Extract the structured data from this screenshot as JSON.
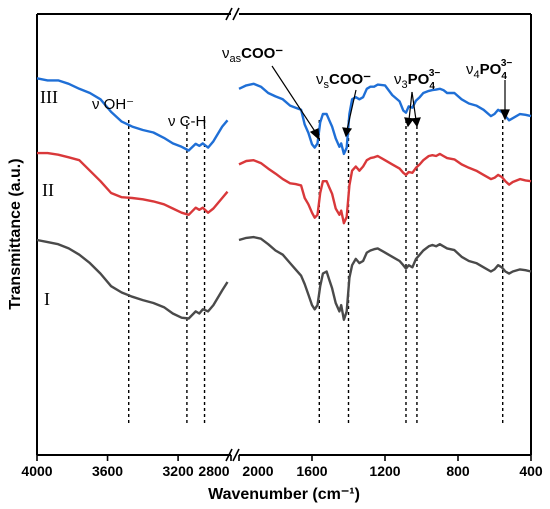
{
  "chart_data": {
    "type": "line",
    "title": "",
    "xlabel": "Wavenumber (cm⁻¹)",
    "ylabel": "Transmittance (a.u.)",
    "x_axis": {
      "reversed": true,
      "broken": true,
      "segments": [
        {
          "range": [
            4000,
            2900
          ],
          "ticks": [
            4000,
            3600,
            3200,
            2800
          ]
        },
        {
          "range": [
            2000,
            400
          ],
          "ticks": [
            2000,
            1600,
            1200,
            800,
            400
          ]
        }
      ],
      "tick_labels": [
        "4000",
        "3600",
        "3200",
        "2800",
        "2000",
        "1600",
        "1200",
        "800",
        "400"
      ],
      "break_marks": "//"
    },
    "y_ticks_shown": false,
    "grid": false,
    "legend": "none",
    "series": [
      {
        "name": "III",
        "color": "#1f6fd6",
        "points": [
          [
            4000,
            0.885
          ],
          [
            3940,
            0.88
          ],
          [
            3880,
            0.88
          ],
          [
            3820,
            0.872
          ],
          [
            3760,
            0.86
          ],
          [
            3700,
            0.85
          ],
          [
            3640,
            0.835
          ],
          [
            3580,
            0.805
          ],
          [
            3520,
            0.782
          ],
          [
            3460,
            0.77
          ],
          [
            3400,
            0.762
          ],
          [
            3340,
            0.756
          ],
          [
            3280,
            0.743
          ],
          [
            3230,
            0.73
          ],
          [
            3180,
            0.722
          ],
          [
            3140,
            0.713
          ],
          [
            3100,
            0.729
          ],
          [
            3080,
            0.724
          ],
          [
            3060,
            0.73
          ],
          [
            3030,
            0.72
          ],
          [
            3000,
            0.735
          ],
          [
            2950,
            0.77
          ],
          [
            2920,
            0.785
          ],
          [
            2000,
            0.86
          ],
          [
            1960,
            0.868
          ],
          [
            1920,
            0.872
          ],
          [
            1880,
            0.865
          ],
          [
            1840,
            0.85
          ],
          [
            1800,
            0.842
          ],
          [
            1760,
            0.835
          ],
          [
            1720,
            0.82
          ],
          [
            1690,
            0.815
          ],
          [
            1660,
            0.81
          ],
          [
            1640,
            0.775
          ],
          [
            1620,
            0.755
          ],
          [
            1600,
            0.728
          ],
          [
            1585,
            0.72
          ],
          [
            1570,
            0.73
          ],
          [
            1555,
            0.78
          ],
          [
            1540,
            0.8
          ],
          [
            1520,
            0.8
          ],
          [
            1505,
            0.785
          ],
          [
            1490,
            0.77
          ],
          [
            1470,
            0.742
          ],
          [
            1450,
            0.722
          ],
          [
            1440,
            0.73
          ],
          [
            1425,
            0.705
          ],
          [
            1410,
            0.72
          ],
          [
            1395,
            0.8
          ],
          [
            1380,
            0.835
          ],
          [
            1360,
            0.84
          ],
          [
            1340,
            0.835
          ],
          [
            1320,
            0.84
          ],
          [
            1300,
            0.86
          ],
          [
            1280,
            0.865
          ],
          [
            1260,
            0.865
          ],
          [
            1240,
            0.87
          ],
          [
            1200,
            0.868
          ],
          [
            1160,
            0.845
          ],
          [
            1120,
            0.83
          ],
          [
            1100,
            0.808
          ],
          [
            1085,
            0.803
          ],
          [
            1070,
            0.818
          ],
          [
            1050,
            0.815
          ],
          [
            1030,
            0.832
          ],
          [
            1010,
            0.84
          ],
          [
            990,
            0.85
          ],
          [
            960,
            0.855
          ],
          [
            940,
            0.857
          ],
          [
            920,
            0.858
          ],
          [
            900,
            0.86
          ],
          [
            880,
            0.857
          ],
          [
            860,
            0.85
          ],
          [
            820,
            0.85
          ],
          [
            780,
            0.835
          ],
          [
            740,
            0.825
          ],
          [
            700,
            0.82
          ],
          [
            660,
            0.81
          ],
          [
            620,
            0.795
          ],
          [
            600,
            0.8
          ],
          [
            580,
            0.81
          ],
          [
            560,
            0.805
          ],
          [
            540,
            0.795
          ],
          [
            520,
            0.785
          ],
          [
            500,
            0.79
          ],
          [
            460,
            0.8
          ],
          [
            430,
            0.798
          ],
          [
            400,
            0.795
          ]
        ]
      },
      {
        "name": "II",
        "color": "#d9383a",
        "points": [
          [
            4000,
            0.707
          ],
          [
            3940,
            0.707
          ],
          [
            3880,
            0.703
          ],
          [
            3820,
            0.697
          ],
          [
            3760,
            0.69
          ],
          [
            3700,
            0.665
          ],
          [
            3640,
            0.64
          ],
          [
            3580,
            0.612
          ],
          [
            3520,
            0.602
          ],
          [
            3460,
            0.6
          ],
          [
            3400,
            0.597
          ],
          [
            3340,
            0.592
          ],
          [
            3280,
            0.585
          ],
          [
            3230,
            0.575
          ],
          [
            3180,
            0.565
          ],
          [
            3140,
            0.56
          ],
          [
            3100,
            0.577
          ],
          [
            3080,
            0.572
          ],
          [
            3060,
            0.577
          ],
          [
            3030,
            0.565
          ],
          [
            3000,
            0.575
          ],
          [
            2950,
            0.6
          ],
          [
            2920,
            0.615
          ],
          [
            2000,
            0.68
          ],
          [
            1960,
            0.688
          ],
          [
            1920,
            0.69
          ],
          [
            1880,
            0.683
          ],
          [
            1840,
            0.67
          ],
          [
            1800,
            0.658
          ],
          [
            1760,
            0.645
          ],
          [
            1720,
            0.635
          ],
          [
            1690,
            0.633
          ],
          [
            1660,
            0.63
          ],
          [
            1640,
            0.6
          ],
          [
            1620,
            0.585
          ],
          [
            1600,
            0.565
          ],
          [
            1585,
            0.553
          ],
          [
            1570,
            0.56
          ],
          [
            1555,
            0.612
          ],
          [
            1540,
            0.64
          ],
          [
            1520,
            0.64
          ],
          [
            1505,
            0.625
          ],
          [
            1490,
            0.61
          ],
          [
            1470,
            0.575
          ],
          [
            1450,
            0.56
          ],
          [
            1440,
            0.57
          ],
          [
            1425,
            0.54
          ],
          [
            1410,
            0.555
          ],
          [
            1395,
            0.63
          ],
          [
            1380,
            0.665
          ],
          [
            1360,
            0.675
          ],
          [
            1340,
            0.665
          ],
          [
            1320,
            0.675
          ],
          [
            1300,
            0.69
          ],
          [
            1280,
            0.695
          ],
          [
            1260,
            0.697
          ],
          [
            1240,
            0.7
          ],
          [
            1200,
            0.69
          ],
          [
            1160,
            0.68
          ],
          [
            1120,
            0.67
          ],
          [
            1100,
            0.66
          ],
          [
            1085,
            0.655
          ],
          [
            1070,
            0.662
          ],
          [
            1050,
            0.66
          ],
          [
            1030,
            0.672
          ],
          [
            1010,
            0.68
          ],
          [
            990,
            0.69
          ],
          [
            960,
            0.7
          ],
          [
            940,
            0.702
          ],
          [
            920,
            0.7
          ],
          [
            900,
            0.705
          ],
          [
            880,
            0.7
          ],
          [
            860,
            0.695
          ],
          [
            820,
            0.692
          ],
          [
            780,
            0.68
          ],
          [
            740,
            0.672
          ],
          [
            700,
            0.665
          ],
          [
            660,
            0.655
          ],
          [
            620,
            0.645
          ],
          [
            600,
            0.648
          ],
          [
            580,
            0.655
          ],
          [
            560,
            0.65
          ],
          [
            540,
            0.64
          ],
          [
            520,
            0.632
          ],
          [
            500,
            0.638
          ],
          [
            460,
            0.645
          ],
          [
            430,
            0.642
          ],
          [
            400,
            0.64
          ]
        ]
      },
      {
        "name": "I",
        "color": "#4a4a4a",
        "points": [
          [
            4000,
            0.5
          ],
          [
            3940,
            0.495
          ],
          [
            3880,
            0.49
          ],
          [
            3820,
            0.48
          ],
          [
            3760,
            0.465
          ],
          [
            3700,
            0.445
          ],
          [
            3640,
            0.42
          ],
          [
            3580,
            0.39
          ],
          [
            3520,
            0.375
          ],
          [
            3460,
            0.365
          ],
          [
            3400,
            0.357
          ],
          [
            3340,
            0.35
          ],
          [
            3280,
            0.34
          ],
          [
            3230,
            0.325
          ],
          [
            3180,
            0.315
          ],
          [
            3140,
            0.313
          ],
          [
            3100,
            0.33
          ],
          [
            3080,
            0.325
          ],
          [
            3060,
            0.335
          ],
          [
            3030,
            0.33
          ],
          [
            3000,
            0.345
          ],
          [
            2950,
            0.38
          ],
          [
            2920,
            0.4
          ],
          [
            2000,
            0.5
          ],
          [
            1960,
            0.505
          ],
          [
            1920,
            0.507
          ],
          [
            1880,
            0.503
          ],
          [
            1840,
            0.49
          ],
          [
            1800,
            0.475
          ],
          [
            1760,
            0.465
          ],
          [
            1720,
            0.445
          ],
          [
            1690,
            0.43
          ],
          [
            1660,
            0.415
          ],
          [
            1640,
            0.395
          ],
          [
            1620,
            0.37
          ],
          [
            1600,
            0.345
          ],
          [
            1585,
            0.335
          ],
          [
            1570,
            0.345
          ],
          [
            1555,
            0.39
          ],
          [
            1540,
            0.42
          ],
          [
            1520,
            0.425
          ],
          [
            1505,
            0.405
          ],
          [
            1490,
            0.385
          ],
          [
            1470,
            0.35
          ],
          [
            1450,
            0.33
          ],
          [
            1440,
            0.345
          ],
          [
            1425,
            0.31
          ],
          [
            1410,
            0.33
          ],
          [
            1395,
            0.41
          ],
          [
            1380,
            0.44
          ],
          [
            1360,
            0.455
          ],
          [
            1340,
            0.445
          ],
          [
            1320,
            0.45
          ],
          [
            1300,
            0.47
          ],
          [
            1280,
            0.475
          ],
          [
            1260,
            0.478
          ],
          [
            1240,
            0.48
          ],
          [
            1200,
            0.47
          ],
          [
            1160,
            0.46
          ],
          [
            1120,
            0.45
          ],
          [
            1100,
            0.44
          ],
          [
            1085,
            0.432
          ],
          [
            1070,
            0.44
          ],
          [
            1050,
            0.435
          ],
          [
            1030,
            0.455
          ],
          [
            1010,
            0.465
          ],
          [
            990,
            0.475
          ],
          [
            960,
            0.485
          ],
          [
            940,
            0.488
          ],
          [
            920,
            0.485
          ],
          [
            900,
            0.49
          ],
          [
            880,
            0.485
          ],
          [
            860,
            0.48
          ],
          [
            820,
            0.476
          ],
          [
            780,
            0.46
          ],
          [
            740,
            0.45
          ],
          [
            700,
            0.445
          ],
          [
            660,
            0.435
          ],
          [
            620,
            0.425
          ],
          [
            600,
            0.43
          ],
          [
            580,
            0.44
          ],
          [
            560,
            0.435
          ],
          [
            540,
            0.425
          ],
          [
            520,
            0.42
          ],
          [
            500,
            0.425
          ],
          [
            460,
            0.43
          ],
          [
            430,
            0.428
          ],
          [
            400,
            0.425
          ]
        ]
      }
    ],
    "reference_lines_x": [
      3480,
      3150,
      3050,
      1560,
      1400,
      1085,
      1025,
      555
    ],
    "annotations": [
      {
        "text": "ν OH⁻",
        "x": 3480
      },
      {
        "text": "ν C-H",
        "x": 3100
      },
      {
        "text": "νₐₛ COO⁻",
        "x": 1560
      },
      {
        "text": "νₛ COO⁻",
        "x": 1400
      },
      {
        "text": "ν₃PO₄³⁻",
        "x": 1055
      },
      {
        "text": "ν₄PO₄³⁻",
        "x": 555
      }
    ],
    "curve_labels": [
      "III",
      "II",
      "I"
    ]
  },
  "labels": {
    "oh": "ν OH⁻",
    "ch": "ν C-H",
    "nu": "ν",
    "as_sub": "as",
    "s_sub": "s",
    "coo": "COO⁻",
    "po4": "PO",
    "po4_sub": "4",
    "po4_sup": "3−",
    "sub3": "3",
    "sub4": "4"
  }
}
